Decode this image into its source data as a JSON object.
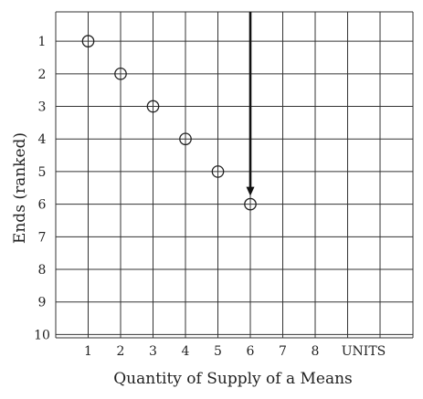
{
  "chart_data": {
    "type": "scatter",
    "xlabel": "Quantity of Supply of a Means",
    "ylabel": "Ends (ranked)",
    "x_ticks": [
      "1",
      "2",
      "3",
      "4",
      "5",
      "6",
      "7",
      "8",
      "UNITS"
    ],
    "y_ticks": [
      "1",
      "2",
      "3",
      "4",
      "5",
      "6",
      "7",
      "8",
      "9",
      "10"
    ],
    "y_inverted": true,
    "grid": true,
    "points": [
      {
        "x": 1,
        "y": 1
      },
      {
        "x": 2,
        "y": 2
      },
      {
        "x": 3,
        "y": 3
      },
      {
        "x": 4,
        "y": 4
      },
      {
        "x": 5,
        "y": 5
      },
      {
        "x": 6,
        "y": 6
      }
    ],
    "arrow": {
      "x": 6,
      "from_y": 1,
      "to_y": 6
    }
  }
}
